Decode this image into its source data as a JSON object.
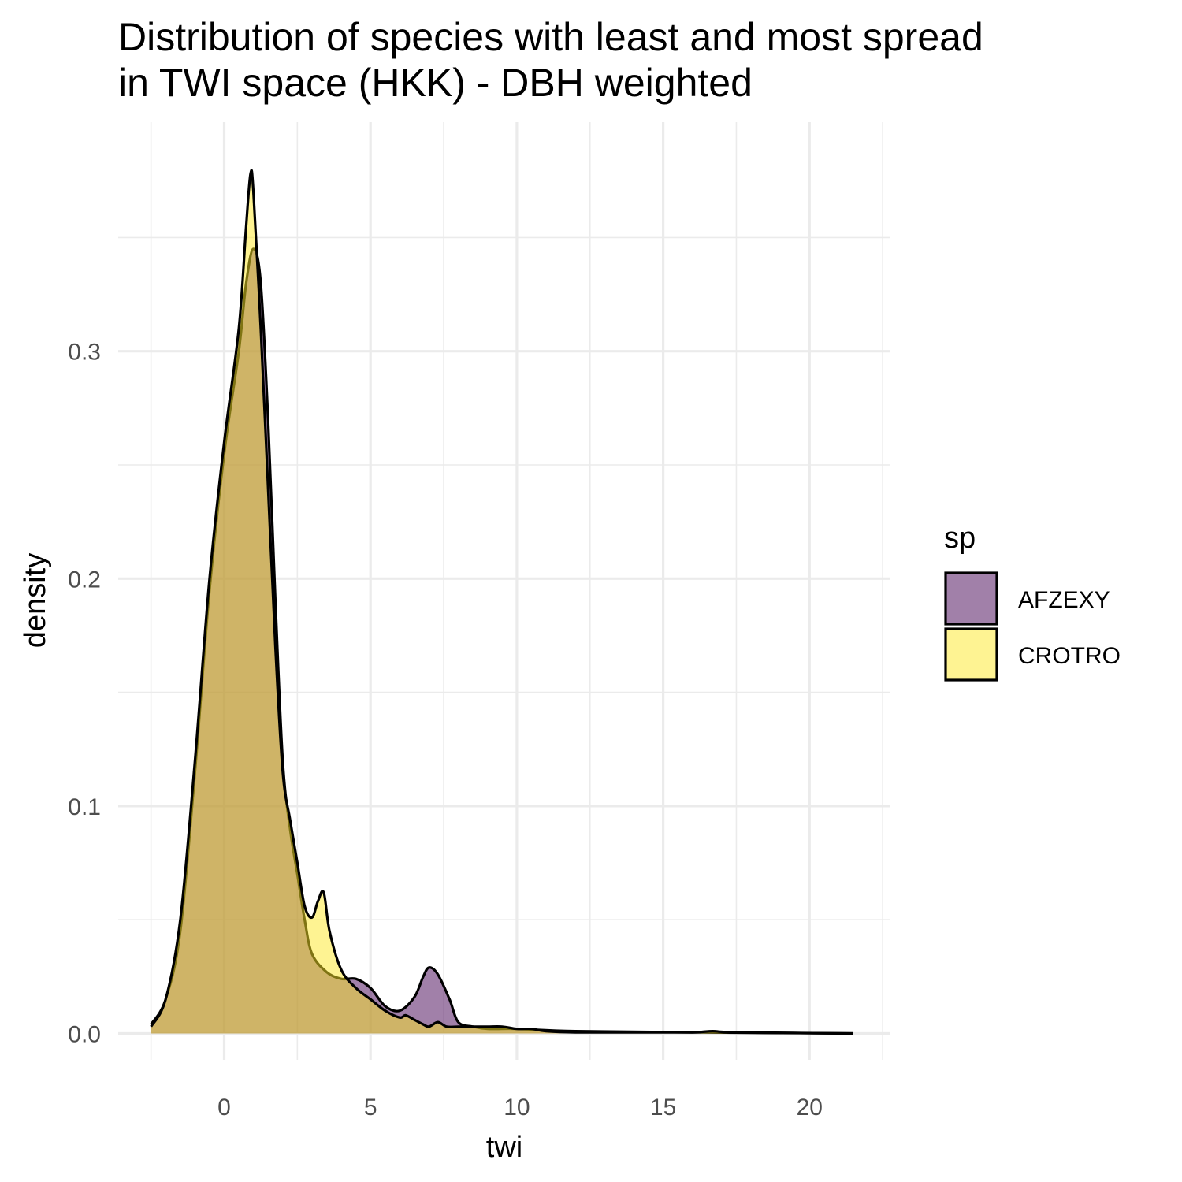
{
  "chart_data": {
    "type": "area",
    "title_lines": [
      "Distribution of species with least and most spread",
      "in TWI space (HKK) - DBH weighted"
    ],
    "xlabel": "twi",
    "ylabel": "density",
    "xlim": [
      -2.5,
      22
    ],
    "ylim": [
      -0.0115,
      0.37
    ],
    "x_ticks": [
      0,
      5,
      10,
      15,
      20
    ],
    "x_minor_ticks": [
      -2.5,
      2.5,
      7.5,
      12.5,
      17.5,
      22.5
    ],
    "y_ticks": [
      0.0,
      0.1,
      0.2,
      0.3
    ],
    "y_tick_labels": [
      "0.0",
      "0.1",
      "0.2",
      "0.3"
    ],
    "y_minor_ticks": [
      0.05,
      0.15,
      0.25,
      0.35
    ],
    "grid": true,
    "legend": {
      "title": "sp",
      "position": "right",
      "entries": [
        "AFZEXY",
        "CROTRO"
      ]
    },
    "series": [
      {
        "name": "AFZEXY",
        "color": "#440154",
        "fill_opacity": 0.5,
        "x": [
          -2.5,
          -2.0,
          -1.5,
          -1.0,
          -0.5,
          0.0,
          0.5,
          0.75,
          1.0,
          1.25,
          1.5,
          1.75,
          2.0,
          2.25,
          2.5,
          2.75,
          3.0,
          3.5,
          4.0,
          4.5,
          5.0,
          5.5,
          6.0,
          6.5,
          6.8,
          7.0,
          7.3,
          7.7,
          8.0,
          8.5,
          9.0,
          10.0,
          12.0,
          16.0,
          21.5
        ],
        "y": [
          0.004,
          0.015,
          0.045,
          0.115,
          0.195,
          0.255,
          0.3,
          0.33,
          0.345,
          0.33,
          0.27,
          0.19,
          0.12,
          0.09,
          0.07,
          0.05,
          0.035,
          0.027,
          0.024,
          0.024,
          0.02,
          0.012,
          0.01,
          0.016,
          0.025,
          0.029,
          0.026,
          0.015,
          0.005,
          0.003,
          0.002,
          0.002,
          0.001,
          0.0005,
          0.0
        ]
      },
      {
        "name": "CROTRO",
        "color": "#FDE725",
        "fill_opacity": 0.5,
        "x": [
          -2.5,
          -2.0,
          -1.5,
          -1.0,
          -0.5,
          0.0,
          0.5,
          0.75,
          0.9,
          1.0,
          1.25,
          1.5,
          1.75,
          2.0,
          2.25,
          2.5,
          2.75,
          3.0,
          3.2,
          3.4,
          3.6,
          4.0,
          4.5,
          5.0,
          5.5,
          6.0,
          6.2,
          6.5,
          6.8,
          7.0,
          7.3,
          7.6,
          8.0,
          8.5,
          9.0,
          9.5,
          10.0,
          10.5,
          11.0,
          12.0,
          14.0,
          16.0,
          16.7,
          17.5,
          21.5
        ],
        "y": [
          0.003,
          0.015,
          0.05,
          0.12,
          0.2,
          0.26,
          0.31,
          0.355,
          0.378,
          0.37,
          0.31,
          0.24,
          0.17,
          0.115,
          0.094,
          0.075,
          0.056,
          0.051,
          0.058,
          0.062,
          0.045,
          0.028,
          0.02,
          0.015,
          0.01,
          0.007,
          0.008,
          0.006,
          0.004,
          0.003,
          0.005,
          0.003,
          0.003,
          0.003,
          0.003,
          0.003,
          0.002,
          0.002,
          0.001,
          0.0005,
          0.0005,
          0.0005,
          0.001,
          0.0005,
          0.0
        ]
      }
    ]
  }
}
